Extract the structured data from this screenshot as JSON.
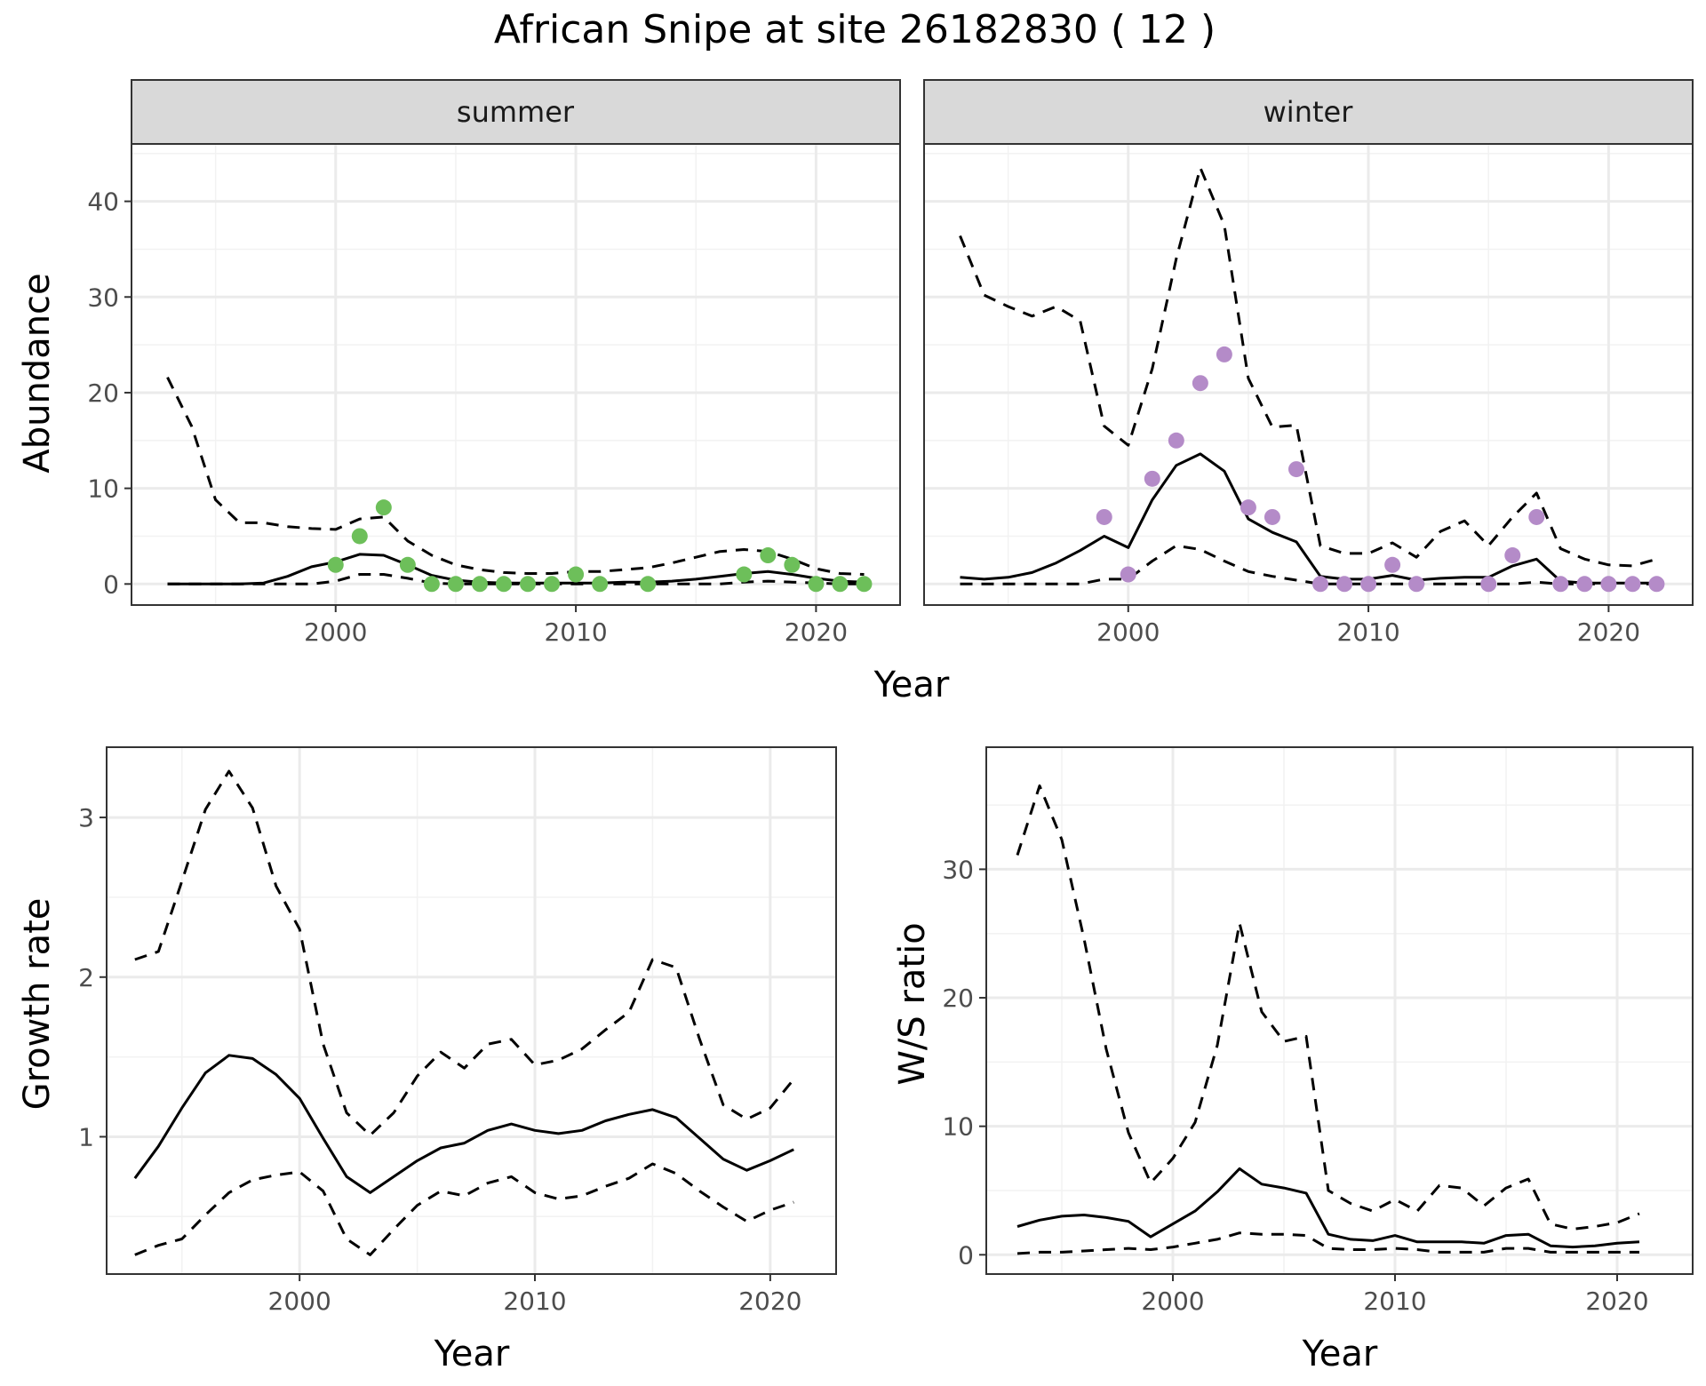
{
  "title": "African Snipe at site 26182830 ( 12 )",
  "colors": {
    "summer_points": "#6dbf5a",
    "winter_points": "#b48bc8",
    "line": "#000000",
    "strip": "#d9d9d9",
    "grid": "#ebebeb"
  },
  "chart_data": [
    {
      "type": "line",
      "facet": "summer",
      "xlabel": "Year",
      "ylabel": "Abundance",
      "shared_ylabel_with": "winter",
      "xlim": [
        1991.5,
        2023.5
      ],
      "ylim": [
        -2.2,
        46
      ],
      "xticks": [
        2000,
        2010,
        2020
      ],
      "yticks": [
        0,
        10,
        20,
        30,
        40
      ],
      "x": [
        1993,
        1994,
        1995,
        1996,
        1997,
        1998,
        1999,
        2000,
        2001,
        2002,
        2003,
        2004,
        2005,
        2006,
        2007,
        2008,
        2009,
        2010,
        2011,
        2012,
        2013,
        2014,
        2015,
        2016,
        2017,
        2018,
        2019,
        2020,
        2021,
        2022
      ],
      "series": [
        {
          "name": "",
          "style": "solid",
          "values": [
            0,
            0,
            0,
            0,
            0.1,
            0.8,
            1.8,
            2.3,
            3.1,
            3.0,
            2.0,
            0.9,
            0.4,
            0.2,
            0.1,
            0.1,
            0.1,
            0.1,
            0.1,
            0.2,
            0.2,
            0.3,
            0.5,
            0.8,
            1.1,
            1.3,
            1.0,
            0.6,
            0.3,
            0.2
          ]
        },
        {
          "name": "",
          "style": "dashed",
          "values": [
            21.6,
            16.5,
            8.8,
            6.4,
            6.4,
            6.0,
            5.8,
            5.7,
            6.8,
            7.0,
            4.5,
            3.0,
            2.0,
            1.5,
            1.2,
            1.1,
            1.1,
            1.3,
            1.3,
            1.5,
            1.7,
            2.2,
            2.8,
            3.4,
            3.6,
            3.4,
            2.6,
            1.6,
            1.1,
            1.0
          ]
        },
        {
          "name": "",
          "style": "dashed",
          "values": [
            0,
            0,
            0,
            0,
            0,
            0,
            0,
            0.3,
            1.0,
            1.0,
            0.6,
            0.1,
            0,
            0,
            0,
            0,
            0,
            0,
            0,
            0,
            0,
            0,
            0,
            0,
            0.2,
            0.3,
            0.2,
            0.1,
            0,
            0
          ]
        }
      ],
      "points": {
        "x": [
          2000,
          2001,
          2002,
          2003,
          2004,
          2005,
          2006,
          2007,
          2008,
          2009,
          2010,
          2011,
          2013,
          2017,
          2018,
          2019,
          2020,
          2021,
          2022
        ],
        "y": [
          2,
          5,
          8,
          2,
          0,
          0,
          0,
          0,
          0,
          0,
          1,
          0,
          0,
          1,
          3,
          2,
          0,
          0,
          0
        ]
      }
    },
    {
      "type": "line",
      "facet": "winter",
      "xlabel": "Year",
      "xlim": [
        1991.5,
        2023.5
      ],
      "ylim": [
        -2.2,
        46
      ],
      "xticks": [
        2000,
        2010,
        2020
      ],
      "yticks": [
        0,
        10,
        20,
        30,
        40
      ],
      "x": [
        1993,
        1994,
        1995,
        1996,
        1997,
        1998,
        1999,
        2000,
        2001,
        2002,
        2003,
        2004,
        2005,
        2006,
        2007,
        2008,
        2009,
        2010,
        2011,
        2012,
        2013,
        2014,
        2015,
        2016,
        2017,
        2018,
        2019,
        2020,
        2021,
        2022
      ],
      "series": [
        {
          "name": "",
          "style": "solid",
          "values": [
            0.7,
            0.5,
            0.7,
            1.2,
            2.2,
            3.5,
            5.0,
            3.8,
            8.8,
            12.4,
            13.6,
            11.8,
            6.8,
            5.4,
            4.4,
            0.8,
            0.5,
            0.5,
            0.9,
            0.4,
            0.6,
            0.7,
            0.7,
            1.9,
            2.6,
            0.3,
            0.1,
            0.1,
            0.1,
            0.1
          ]
        },
        {
          "name": "",
          "style": "dashed",
          "values": [
            36.4,
            30.2,
            29.0,
            28.0,
            29.0,
            27.5,
            16.5,
            14.5,
            22.5,
            34.0,
            43.5,
            37.5,
            21.5,
            16.4,
            16.6,
            4.0,
            3.2,
            3.2,
            4.3,
            2.8,
            5.5,
            6.6,
            4.0,
            7.0,
            9.5,
            3.7,
            2.6,
            2.0,
            1.9,
            2.6
          ]
        },
        {
          "name": "",
          "style": "dashed",
          "values": [
            0,
            0,
            0,
            0,
            0,
            0,
            0.5,
            0.5,
            2.4,
            4.0,
            3.6,
            2.4,
            1.3,
            0.8,
            0.4,
            0,
            0,
            0,
            0,
            0,
            0,
            0,
            0,
            0,
            0.2,
            0,
            0,
            0,
            0,
            0
          ]
        }
      ],
      "points": {
        "x": [
          1999,
          2000,
          2001,
          2002,
          2003,
          2004,
          2005,
          2006,
          2007,
          2008,
          2009,
          2010,
          2011,
          2012,
          2015,
          2016,
          2017,
          2018,
          2019,
          2020,
          2021,
          2022
        ],
        "y": [
          7,
          1,
          11,
          15,
          21,
          24,
          8,
          7,
          12,
          0,
          0,
          0,
          2,
          0,
          0,
          3,
          7,
          0,
          0,
          0,
          0,
          0
        ]
      }
    },
    {
      "type": "line",
      "xlabel": "Year",
      "ylabel": "Growth rate",
      "xlim": [
        1991.8,
        2022.8
      ],
      "ylim": [
        0.14,
        3.44
      ],
      "xticks": [
        2000,
        2010,
        2020
      ],
      "yticks": [
        1,
        2,
        3
      ],
      "x": [
        1993,
        1994,
        1995,
        1996,
        1997,
        1998,
        1999,
        2000,
        2001,
        2002,
        2003,
        2004,
        2005,
        2006,
        2007,
        2008,
        2009,
        2010,
        2011,
        2012,
        2013,
        2014,
        2015,
        2016,
        2017,
        2018,
        2019,
        2020,
        2021
      ],
      "series": [
        {
          "name": "",
          "style": "solid",
          "values": [
            0.74,
            0.94,
            1.18,
            1.4,
            1.51,
            1.49,
            1.39,
            1.24,
            0.99,
            0.75,
            0.65,
            0.75,
            0.85,
            0.93,
            0.96,
            1.04,
            1.08,
            1.04,
            1.02,
            1.04,
            1.1,
            1.14,
            1.17,
            1.12,
            0.99,
            0.86,
            0.79,
            0.85,
            0.92
          ]
        },
        {
          "name": "",
          "style": "dashed",
          "values": [
            2.11,
            2.16,
            2.6,
            3.05,
            3.29,
            3.06,
            2.57,
            2.3,
            1.58,
            1.15,
            1.01,
            1.15,
            1.38,
            1.53,
            1.43,
            1.58,
            1.61,
            1.45,
            1.48,
            1.55,
            1.67,
            1.78,
            2.11,
            2.06,
            1.61,
            1.2,
            1.11,
            1.18,
            1.36
          ]
        },
        {
          "name": "",
          "style": "dashed",
          "values": [
            0.26,
            0.32,
            0.36,
            0.51,
            0.65,
            0.73,
            0.76,
            0.78,
            0.66,
            0.36,
            0.26,
            0.42,
            0.57,
            0.66,
            0.63,
            0.71,
            0.75,
            0.65,
            0.61,
            0.63,
            0.69,
            0.74,
            0.83,
            0.77,
            0.66,
            0.56,
            0.47,
            0.54,
            0.59
          ]
        }
      ]
    },
    {
      "type": "line",
      "xlabel": "Year",
      "ylabel": "W/S ratio",
      "xlim": [
        1991.6,
        2023.4
      ],
      "ylim": [
        -1.5,
        39.5
      ],
      "xticks": [
        2000,
        2010,
        2020
      ],
      "yticks": [
        0,
        10,
        20,
        30
      ],
      "x": [
        1993,
        1994,
        1995,
        1996,
        1997,
        1998,
        1999,
        2000,
        2001,
        2002,
        2003,
        2004,
        2005,
        2006,
        2007,
        2008,
        2009,
        2010,
        2011,
        2012,
        2013,
        2014,
        2015,
        2016,
        2017,
        2018,
        2019,
        2020,
        2021
      ],
      "series": [
        {
          "name": "",
          "style": "solid",
          "values": [
            2.2,
            2.7,
            3.0,
            3.1,
            2.9,
            2.6,
            1.4,
            2.4,
            3.4,
            4.9,
            6.7,
            5.5,
            5.2,
            4.8,
            1.6,
            1.2,
            1.1,
            1.5,
            1.0,
            1.0,
            1.0,
            0.9,
            1.5,
            1.6,
            0.7,
            0.6,
            0.7,
            0.9,
            1.0
          ]
        },
        {
          "name": "",
          "style": "dashed",
          "values": [
            31.1,
            36.5,
            32.3,
            24.6,
            16.0,
            9.5,
            5.6,
            7.5,
            10.3,
            16.3,
            25.8,
            18.9,
            16.6,
            17.0,
            5.0,
            4.0,
            3.4,
            4.3,
            3.4,
            5.4,
            5.2,
            3.8,
            5.2,
            5.9,
            2.4,
            2.0,
            2.2,
            2.5,
            3.2
          ]
        },
        {
          "name": "",
          "style": "dashed",
          "values": [
            0.1,
            0.2,
            0.2,
            0.3,
            0.4,
            0.5,
            0.4,
            0.6,
            0.9,
            1.2,
            1.7,
            1.6,
            1.6,
            1.5,
            0.5,
            0.4,
            0.4,
            0.5,
            0.4,
            0.2,
            0.2,
            0.2,
            0.5,
            0.5,
            0.2,
            0.2,
            0.2,
            0.2,
            0.2
          ]
        }
      ]
    }
  ]
}
